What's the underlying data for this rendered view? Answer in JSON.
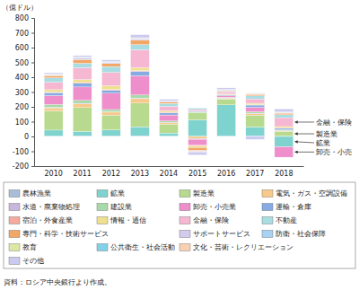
{
  "chart_data": {
    "type": "bar",
    "stacked": true,
    "y_label": "（億ドル）",
    "source": "資料：ロシア中央銀行より作成。",
    "categories": [
      "2010",
      "2011",
      "2012",
      "2013",
      "2014",
      "2015",
      "2016",
      "2017",
      "2018"
    ],
    "ylim": [
      -200,
      800
    ],
    "yticks": [
      -200,
      -100,
      0,
      100,
      200,
      300,
      400,
      500,
      600,
      700,
      800
    ],
    "grid": false,
    "series": [
      {
        "name": "農林漁業",
        "color": "#a9bcd8",
        "values": [
          3,
          5,
          4,
          5,
          3,
          2,
          3,
          4,
          3
        ]
      },
      {
        "name": "鉱業",
        "color": "#7fd3cf",
        "values": [
          40,
          30,
          40,
          60,
          20,
          110,
          210,
          60,
          -70
        ]
      },
      {
        "name": "製造業",
        "color": "#b7da8e",
        "values": [
          130,
          160,
          100,
          160,
          60,
          50,
          40,
          80,
          30
        ]
      },
      {
        "name": "電気・ガス・空調設備",
        "color": "#f7c98a",
        "values": [
          20,
          25,
          20,
          30,
          10,
          -15,
          5,
          10,
          5
        ]
      },
      {
        "name": "水道・廃棄物処理",
        "color": "#c9b6dd",
        "values": [
          3,
          4,
          3,
          5,
          2,
          -5,
          2,
          3,
          2
        ]
      },
      {
        "name": "建設業",
        "color": "#a7d9a9",
        "values": [
          20,
          20,
          15,
          20,
          10,
          5,
          5,
          10,
          5
        ]
      },
      {
        "name": "卸売・小売業",
        "color": "#ee8fcb",
        "values": [
          60,
          90,
          110,
          130,
          40,
          -40,
          10,
          30,
          -70
        ]
      },
      {
        "name": "運輸・倉庫",
        "color": "#86abe2",
        "values": [
          20,
          25,
          20,
          30,
          15,
          5,
          5,
          15,
          10
        ]
      },
      {
        "name": "宿泊・外食産業",
        "color": "#f4ab9c",
        "values": [
          5,
          5,
          5,
          5,
          3,
          -5,
          2,
          2,
          2
        ]
      },
      {
        "name": "情報・通信",
        "color": "#efe08f",
        "values": [
          15,
          20,
          25,
          20,
          10,
          -10,
          5,
          10,
          10
        ]
      },
      {
        "name": "金融・保険",
        "color": "#f5b7d2",
        "values": [
          50,
          80,
          90,
          120,
          30,
          10,
          15,
          30,
          60
        ]
      },
      {
        "name": "不動産",
        "color": "#a9dde1",
        "values": [
          30,
          30,
          40,
          35,
          20,
          10,
          5,
          20,
          20
        ]
      },
      {
        "name": "専門・科学・技術サービス",
        "color": "#f3a766",
        "values": [
          15,
          25,
          20,
          30,
          10,
          -20,
          5,
          10,
          10
        ]
      },
      {
        "name": "サポートサービス",
        "color": "#d3cbee",
        "values": [
          5,
          10,
          8,
          10,
          5,
          -5,
          3,
          5,
          5
        ]
      },
      {
        "name": "防衛・社会保障",
        "color": "#a9d1f1",
        "values": [
          1,
          1,
          1,
          1,
          0,
          0,
          0,
          1,
          1
        ]
      },
      {
        "name": "教育",
        "color": "#dde9a3",
        "values": [
          1,
          1,
          1,
          1,
          1,
          0,
          1,
          1,
          1
        ]
      },
      {
        "name": "公共衛生・社会活動",
        "color": "#82d1e8",
        "values": [
          2,
          2,
          2,
          2,
          1,
          1,
          1,
          1,
          1
        ]
      },
      {
        "name": "文化・芸術・レクリエーション",
        "color": "#f8d1b2",
        "values": [
          2,
          3,
          2,
          3,
          1,
          -5,
          1,
          1,
          1
        ]
      },
      {
        "name": "その他",
        "color": "#cacaf1",
        "values": [
          8,
          10,
          10,
          20,
          10,
          -20,
          10,
          -20,
          20
        ]
      }
    ],
    "annotations": [
      {
        "text": "金融・保険",
        "series": "金融・保険"
      },
      {
        "text": "製造業",
        "series": "製造業"
      },
      {
        "text": "鉱業",
        "series": "鉱業"
      },
      {
        "text": "卸売・小売",
        "series": "卸売・小売業"
      }
    ]
  }
}
